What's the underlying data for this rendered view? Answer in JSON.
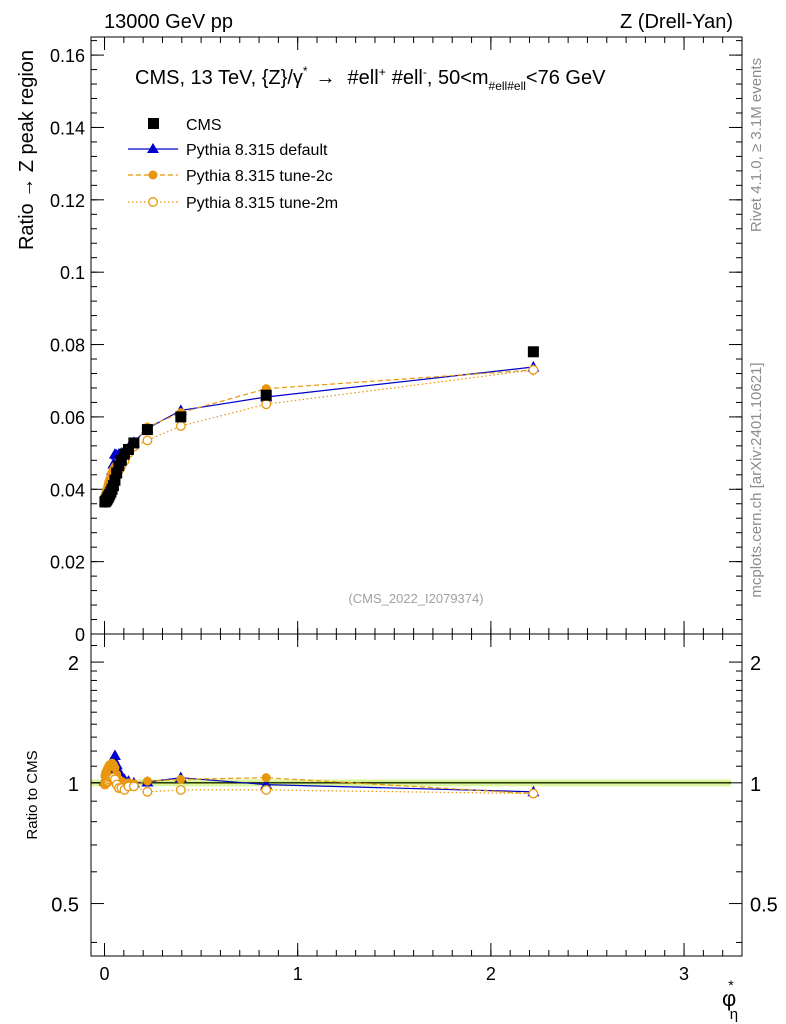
{
  "header": {
    "left": "13000 GeV pp",
    "right": "Z (Drell-Yan)"
  },
  "side_labels": {
    "rivet": "Rivet 4.1.0, ≥ 3.1M events",
    "mcplots": "mcplots.cern.ch [arXiv:2401.10621]"
  },
  "plot_title": {
    "main": "CMS, 13 TeV, {Z}/γ",
    "star": "*",
    "arrow": "→",
    "ell1": "#ell",
    "plus": "+",
    "ell2": "#ell",
    "minus": "-",
    "mass_pre": ", 50<m",
    "mass_sub": "#ell#ell",
    "mass_post": "<76 GeV"
  },
  "watermark": "(CMS_2022_I2079374)",
  "legend": [
    {
      "label": "CMS",
      "marker": "square-filled",
      "color": "#000000",
      "line": "none"
    },
    {
      "label": "Pythia 8.315 default",
      "marker": "triangle-filled",
      "color": "#0000cc",
      "line": "solid"
    },
    {
      "label": "Pythia 8.315 tune-2c",
      "marker": "circle-filled",
      "color": "#e8960c",
      "line": "dashed"
    },
    {
      "label": "Pythia 8.315 tune-2m",
      "marker": "circle-open",
      "color": "#e8960c",
      "line": "dotted"
    }
  ],
  "xlabel": {
    "main": "φ",
    "sub": "η",
    "sup": "*"
  },
  "colors": {
    "band": "#ddf5a0",
    "band_core": "#a7e03a"
  },
  "chart_data": [
    {
      "type": "line",
      "title": "CMS, 13 TeV, {Z}/γ* → #ell+ #ell-, 50<m#ell#ell<76 GeV",
      "xlabel": "φ*η",
      "ylabel": "Ratio → Z peak region",
      "xlim": [
        -0.07,
        3.3
      ],
      "ylim": [
        0,
        0.165
      ],
      "yticks": [
        0,
        0.02,
        0.04,
        0.06,
        0.08,
        0.1,
        0.12,
        0.14,
        0.16
      ],
      "ytick_labels": [
        "0",
        "0.02",
        "0.04",
        "0.06",
        "0.08",
        "0.1",
        "0.12",
        "0.14",
        "0.16"
      ],
      "x": [
        0.002,
        0.006,
        0.01,
        0.014,
        0.018,
        0.022,
        0.027,
        0.033,
        0.039,
        0.046,
        0.054,
        0.063,
        0.074,
        0.087,
        0.103,
        0.124,
        0.152,
        0.222,
        0.395,
        0.837,
        2.22
      ],
      "series": [
        {
          "name": "CMS",
          "values": [
            0.0365,
            0.0367,
            0.037,
            0.0373,
            0.0377,
            0.0381,
            0.0386,
            0.0392,
            0.04,
            0.041,
            0.0425,
            0.0445,
            0.0465,
            0.048,
            0.0497,
            0.051,
            0.0528,
            0.0565,
            0.06,
            0.066,
            0.078
          ],
          "errors": [
            0.0008,
            0.0008,
            0.0008,
            0.0008,
            0.0008,
            0.0008,
            0.0008,
            0.0008,
            0.0008,
            0.0008,
            0.0008,
            0.0008,
            0.0008,
            0.0008,
            0.0008,
            0.0008,
            0.0008,
            0.0008,
            0.0009,
            0.001,
            0.0012
          ]
        },
        {
          "name": "Pythia 8.315 default",
          "values": [
            0.037,
            0.0375,
            0.0382,
            0.039,
            0.0398,
            0.0408,
            0.042,
            0.0435,
            0.0452,
            0.047,
            0.0497,
            0.0495,
            0.0497,
            0.05,
            0.0507,
            0.0515,
            0.053,
            0.0568,
            0.0618,
            0.0655,
            0.0738
          ],
          "errors": [
            0.0006,
            0.0006,
            0.0006,
            0.0006,
            0.0006,
            0.0006,
            0.0006,
            0.0006,
            0.0006,
            0.0006,
            0.0006,
            0.0006,
            0.0006,
            0.0006,
            0.0006,
            0.0006,
            0.0006,
            0.0006,
            0.0006,
            0.0007,
            0.0015
          ]
        },
        {
          "name": "Pythia 8.315 tune-2c",
          "values": [
            0.038,
            0.0388,
            0.0395,
            0.0402,
            0.0412,
            0.042,
            0.0428,
            0.0437,
            0.0447,
            0.0455,
            0.0462,
            0.0468,
            0.0475,
            0.0485,
            0.0495,
            0.0512,
            0.0525,
            0.0572,
            0.0612,
            0.0678,
            0.073
          ],
          "errors": [
            0.0006,
            0.0006,
            0.0006,
            0.0006,
            0.0006,
            0.0006,
            0.0006,
            0.0006,
            0.0006,
            0.0006,
            0.0006,
            0.0006,
            0.0006,
            0.0006,
            0.0006,
            0.0006,
            0.0006,
            0.0006,
            0.0006,
            0.0007,
            0.0015
          ]
        },
        {
          "name": "Pythia 8.315 tune-2m",
          "values": [
            0.0362,
            0.0366,
            0.037,
            0.0375,
            0.0381,
            0.0388,
            0.0396,
            0.0404,
            0.0413,
            0.0422,
            0.0432,
            0.0442,
            0.0452,
            0.0465,
            0.0478,
            0.05,
            0.0518,
            0.0535,
            0.0575,
            0.0635,
            0.073
          ],
          "errors": [
            0.0006,
            0.0006,
            0.0006,
            0.0006,
            0.0006,
            0.0006,
            0.0006,
            0.0006,
            0.0006,
            0.0006,
            0.0006,
            0.0006,
            0.0006,
            0.0006,
            0.0006,
            0.0006,
            0.0006,
            0.0006,
            0.0006,
            0.0007,
            0.0015
          ]
        }
      ]
    },
    {
      "type": "line",
      "title": "",
      "xlabel": "φ*η",
      "ylabel": "Ratio to CMS",
      "xlim": [
        -0.07,
        3.3
      ],
      "ylim": [
        0.37,
        2.35
      ],
      "scale": "log",
      "xticks": [
        0,
        1,
        2,
        3
      ],
      "xtick_labels": [
        "0",
        "1",
        "2",
        "3"
      ],
      "yticks": [
        0.5,
        1,
        2
      ],
      "ytick_labels": [
        "0.5",
        "1",
        "2"
      ],
      "reference_band": {
        "y": 1.0,
        "half_width": 0.02
      },
      "x": [
        0.002,
        0.006,
        0.01,
        0.014,
        0.018,
        0.022,
        0.027,
        0.033,
        0.039,
        0.046,
        0.054,
        0.063,
        0.074,
        0.087,
        0.103,
        0.124,
        0.152,
        0.222,
        0.395,
        0.837,
        2.22
      ],
      "series": [
        {
          "name": "Pythia 8.315 default",
          "values": [
            1.01,
            1.02,
            1.03,
            1.05,
            1.06,
            1.07,
            1.09,
            1.11,
            1.13,
            1.15,
            1.17,
            1.11,
            1.07,
            1.04,
            1.02,
            1.01,
            1.0,
            1.005,
            1.03,
            0.99,
            0.95
          ]
        },
        {
          "name": "Pythia 8.315 tune-2c",
          "values": [
            1.04,
            1.06,
            1.07,
            1.08,
            1.09,
            1.1,
            1.11,
            1.11,
            1.12,
            1.11,
            1.09,
            1.05,
            1.02,
            1.01,
            1.0,
            1.0,
            0.995,
            1.01,
            1.02,
            1.03,
            0.94
          ]
        },
        {
          "name": "Pythia 8.315 tune-2m",
          "values": [
            0.99,
            0.997,
            1.0,
            1.005,
            1.01,
            1.02,
            1.03,
            1.03,
            1.03,
            1.03,
            1.02,
            0.99,
            0.97,
            0.97,
            0.96,
            0.98,
            0.98,
            0.95,
            0.96,
            0.96,
            0.94
          ]
        }
      ]
    }
  ]
}
